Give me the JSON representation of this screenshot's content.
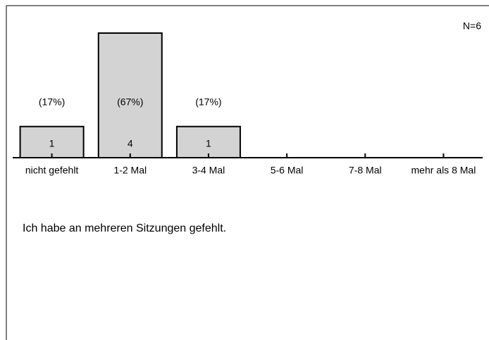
{
  "chart_data": {
    "type": "bar",
    "annotation": "N=6",
    "caption": "Ich habe an mehreren Sitzungen gefehlt.",
    "categories": [
      "nicht gefehlt",
      "1-2 Mal",
      "3-4 Mal",
      "5-6 Mal",
      "7-8 Mal",
      "mehr als 8 Mal"
    ],
    "values": [
      1,
      4,
      1,
      0,
      0,
      0
    ],
    "percent_labels": [
      "(17%)",
      "(67%)",
      "(17%)",
      null,
      null,
      null
    ],
    "color": "#d3d3d3",
    "ylim": [
      0,
      4
    ]
  }
}
